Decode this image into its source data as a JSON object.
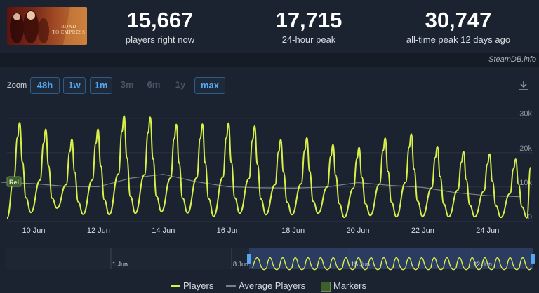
{
  "header": {
    "game_image_text": [
      "ROAD",
      "TO EMPRESS"
    ],
    "stats": [
      {
        "value": "15,667",
        "label": "players right now"
      },
      {
        "value": "17,715",
        "label": "24-hour peak"
      },
      {
        "value": "30,747",
        "label": "all-time peak 12 days ago"
      }
    ]
  },
  "watermark": "SteamDB.info",
  "zoom": {
    "label": "Zoom",
    "buttons": [
      {
        "label": "48h",
        "state": "active"
      },
      {
        "label": "1w",
        "state": "active"
      },
      {
        "label": "1m",
        "state": "active"
      },
      {
        "label": "3m",
        "state": "disabled"
      },
      {
        "label": "6m",
        "state": "disabled"
      },
      {
        "label": "1y",
        "state": "disabled"
      },
      {
        "label": "max",
        "state": "active"
      }
    ]
  },
  "icons": {
    "download": "download-icon"
  },
  "colors": {
    "players": "#d9f04a",
    "average": "#7a8088",
    "marker": "#3f5f2c",
    "accent": "#53a8ef",
    "background": "#1b2330"
  },
  "chart_data": {
    "type": "line",
    "x_tick_labels": [
      "10 Jun",
      "12 Jun",
      "14 Jun",
      "16 Jun",
      "18 Jun",
      "20 Jun",
      "22 Jun",
      "24 Jun"
    ],
    "y_tick_labels": [
      "30k",
      "20k",
      "10k",
      "0"
    ],
    "ylim": [
      0,
      33000
    ],
    "grid": true,
    "legend_position": "bottom",
    "marker_label": "Rel",
    "series": [
      {
        "name": "Players",
        "daily_peaks": [
          28700,
          26800,
          23900,
          26800,
          30700,
          30300,
          28200,
          28300,
          28600,
          27700,
          23800,
          24300,
          22300,
          21500,
          24200,
          25400,
          21800,
          20300,
          19600,
          18100
        ],
        "daily_troughs": [
          2600,
          3900,
          2100,
          2000,
          2400,
          2900,
          2500,
          1500,
          2400,
          2000,
          2000,
          2400,
          1200,
          1800,
          1400,
          1500,
          1400,
          1400,
          1200,
          1100
        ],
        "latest": 15667
      },
      {
        "name": "Average Players",
        "x": [
          "9 Jun",
          "10 Jun",
          "11 Jun",
          "12 Jun",
          "13 Jun",
          "14 Jun",
          "15 Jun",
          "16 Jun",
          "17 Jun",
          "18 Jun",
          "19 Jun",
          "20 Jun",
          "21 Jun",
          "22 Jun",
          "23 Jun",
          "24 Jun",
          "25 Jun"
        ],
        "values": [
          11400,
          11000,
          10200,
          10100,
          12600,
          13700,
          11600,
          10100,
          9800,
          9700,
          10000,
          11300,
          10500,
          9900,
          8400,
          7500,
          7200
        ]
      }
    ],
    "navigator": {
      "x_tick_labels": [
        "1 Jun",
        "8 Jun",
        "15 Jun",
        "22 Jun"
      ],
      "selected_range": [
        "8 Jun",
        "25 Jun"
      ]
    }
  },
  "legend": {
    "items": [
      {
        "label": "Players"
      },
      {
        "label": "Average Players"
      },
      {
        "label": "Markers"
      }
    ]
  }
}
